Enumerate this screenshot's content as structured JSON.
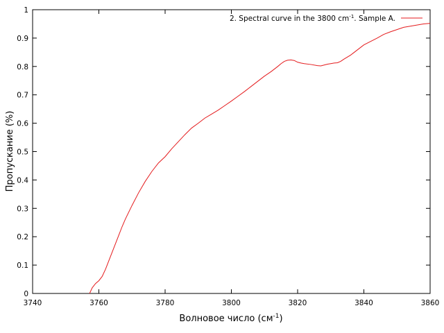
{
  "chart_data": {
    "type": "line",
    "xlabel": "Волновое число (см",
    "xlabel_sup": "-1",
    "xlabel_end": ")",
    "ylabel": "Пропускание (%)",
    "xlim": [
      3740,
      3860
    ],
    "ylim": [
      0,
      1
    ],
    "x_ticks": [
      3740,
      3760,
      3780,
      3800,
      3820,
      3840,
      3860
    ],
    "y_ticks": [
      0,
      0.1,
      0.2,
      0.3,
      0.4,
      0.5,
      0.6,
      0.7,
      0.8,
      0.9,
      1
    ],
    "y_tick_labels": [
      "0",
      "0.1",
      "0.2",
      "0.3",
      "0.4",
      "0.5",
      "0.6",
      "0.7",
      "0.8",
      "0.9",
      "1"
    ],
    "grid": false,
    "legend_position": "top-right",
    "series": [
      {
        "name": "2. Spectral curve in the 3800 cm-1. Sample A.",
        "legend_text": "2. Spectral curve in the 3800 cm",
        "legend_sup": "-1",
        "legend_end": ". Sample A.",
        "color": "#e41a1c",
        "x": [
          3757.2,
          3758,
          3759,
          3760,
          3761,
          3762,
          3763,
          3764,
          3765,
          3766,
          3767,
          3768,
          3770,
          3772,
          3774,
          3776,
          3778,
          3780,
          3782,
          3784,
          3786,
          3788,
          3790,
          3792,
          3794,
          3796,
          3798,
          3800,
          3802,
          3804,
          3806,
          3808,
          3810,
          3812,
          3814,
          3815,
          3816,
          3817,
          3818,
          3819,
          3820,
          3821,
          3822,
          3824,
          3826,
          3827,
          3828,
          3829,
          3830,
          3831,
          3832,
          3833,
          3834,
          3836,
          3838,
          3840,
          3842,
          3844,
          3846,
          3848,
          3850,
          3852,
          3854,
          3856,
          3858,
          3860
        ],
        "y": [
          0.0,
          0.02,
          0.035,
          0.045,
          0.06,
          0.085,
          0.115,
          0.145,
          0.175,
          0.205,
          0.235,
          0.262,
          0.31,
          0.355,
          0.395,
          0.43,
          0.46,
          0.482,
          0.51,
          0.535,
          0.56,
          0.583,
          0.6,
          0.618,
          0.632,
          0.646,
          0.662,
          0.678,
          0.695,
          0.712,
          0.73,
          0.748,
          0.766,
          0.782,
          0.8,
          0.81,
          0.818,
          0.822,
          0.823,
          0.821,
          0.815,
          0.812,
          0.81,
          0.807,
          0.803,
          0.802,
          0.805,
          0.808,
          0.81,
          0.812,
          0.813,
          0.818,
          0.826,
          0.84,
          0.858,
          0.876,
          0.888,
          0.9,
          0.913,
          0.922,
          0.93,
          0.938,
          0.942,
          0.946,
          0.95,
          0.952
        ]
      }
    ]
  }
}
